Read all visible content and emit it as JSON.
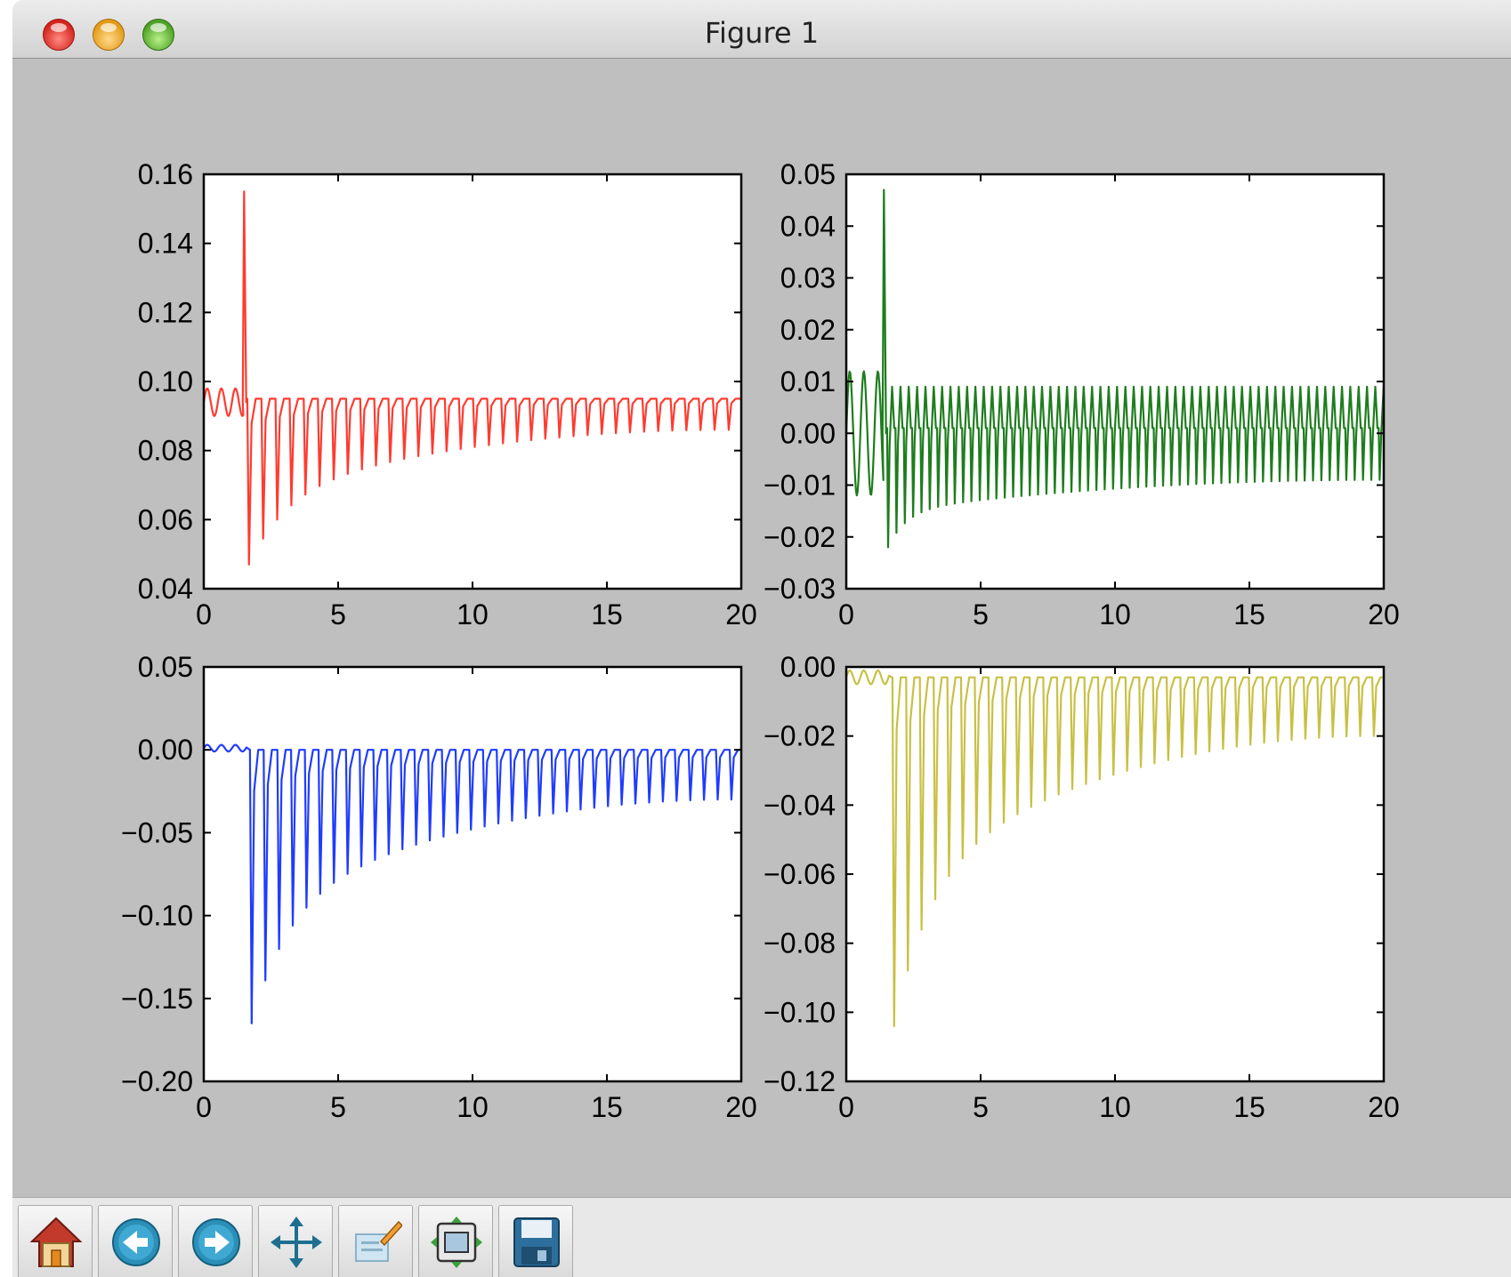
{
  "window": {
    "title": "Figure 1",
    "buttons": [
      "close",
      "minimize",
      "zoom"
    ]
  },
  "toolbar": {
    "buttons": [
      {
        "name": "home",
        "icon": "home-icon"
      },
      {
        "name": "back",
        "icon": "back-arrow-icon"
      },
      {
        "name": "forward",
        "icon": "forward-arrow-icon"
      },
      {
        "name": "pan",
        "icon": "move-arrows-icon"
      },
      {
        "name": "zoom-to-rect",
        "icon": "zoom-rect-icon"
      },
      {
        "name": "configure-subplots",
        "icon": "subplots-icon"
      },
      {
        "name": "save",
        "icon": "floppy-disk-icon"
      }
    ]
  },
  "chart_data": [
    {
      "type": "line",
      "color": "#ff3b30",
      "xlim": [
        0,
        20
      ],
      "ylim": [
        0.04,
        0.16
      ],
      "xticks": [
        "0",
        "5",
        "10",
        "15",
        "20"
      ],
      "yticks": [
        "0.04",
        "0.06",
        "0.08",
        "0.10",
        "0.12",
        "0.14",
        "0.16"
      ],
      "signal": {
        "t0": 1.5,
        "n_cycles": 35,
        "period": 0.525,
        "base_pre": 0.094,
        "pre_amp": 0.004,
        "peak": 0.155,
        "peak_x": 1.5,
        "baseline": 0.095,
        "dip_start": 0.047,
        "dip_end": 0.086,
        "decay": 0.12
      }
    },
    {
      "type": "line",
      "color": "#1e7d1e",
      "xlim": [
        0,
        20
      ],
      "ylim": [
        -0.03,
        0.05
      ],
      "xticks": [
        "0",
        "5",
        "10",
        "15",
        "20"
      ],
      "yticks": [
        "−0.03",
        "−0.02",
        "−0.01",
        "0.00",
        "0.01",
        "0.02",
        "0.03",
        "0.04",
        "0.05"
      ],
      "signal": {
        "t0": 1.4,
        "n_cycles": 60,
        "period": 0.31,
        "base_pre": 0.0,
        "pre_amp": 0.012,
        "peak": 0.047,
        "peak_x": 1.4,
        "baseline": 0.001,
        "dip_start": -0.022,
        "dip_end": -0.009,
        "up_amp": 0.008,
        "decay": 0.15
      }
    },
    {
      "type": "line",
      "color": "#1f3cff",
      "xlim": [
        0,
        20
      ],
      "ylim": [
        -0.2,
        0.05
      ],
      "xticks": [
        "0",
        "5",
        "10",
        "15",
        "20"
      ],
      "yticks": [
        "−0.20",
        "−0.15",
        "−0.10",
        "−0.05",
        "0.00",
        "0.05"
      ],
      "signal": {
        "t0": 1.6,
        "n_cycles": 36,
        "period": 0.51,
        "base_pre": 0.001,
        "pre_amp": 0.002,
        "baseline": 0.0,
        "dip_start": -0.165,
        "dip_end": -0.03,
        "decay": 0.12
      }
    },
    {
      "type": "line",
      "color": "#c8c044",
      "xlim": [
        0,
        20
      ],
      "ylim": [
        -0.12,
        0.0
      ],
      "xticks": [
        "0",
        "5",
        "10",
        "15",
        "20"
      ],
      "yticks": [
        "−0.12",
        "−0.10",
        "−0.08",
        "−0.06",
        "−0.04",
        "−0.02",
        "0.00"
      ],
      "signal": {
        "t0": 1.6,
        "n_cycles": 36,
        "period": 0.51,
        "base_pre": -0.003,
        "pre_amp": 0.002,
        "baseline": -0.003,
        "dip_start": -0.104,
        "dip_end": -0.02,
        "decay": 0.12
      }
    }
  ]
}
